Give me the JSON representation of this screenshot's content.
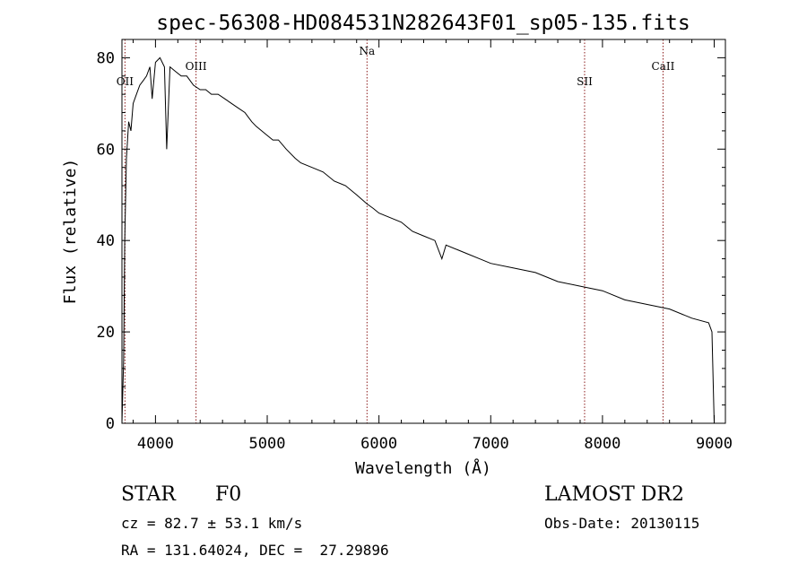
{
  "chart_data": {
    "type": "line",
    "title": "spec-56308-HD084531N282643F01_sp05-135.fits",
    "xlabel": "Wavelength (Å)",
    "ylabel": "Flux (relative)",
    "xlim": [
      3700,
      9100
    ],
    "ylim": [
      0,
      84
    ],
    "xticks": [
      4000,
      5000,
      6000,
      7000,
      8000,
      9000
    ],
    "xtick_labels": [
      "4000",
      "5000",
      "6000",
      "7000",
      "8000",
      "9000"
    ],
    "yticks": [
      0,
      20,
      40,
      60,
      80
    ],
    "ytick_labels": [
      "0",
      "20",
      "40",
      "60",
      "80"
    ],
    "grid": false,
    "line_color": "#000000",
    "marker_color": "#8b1a1a",
    "line_markers": [
      {
        "label": "OII",
        "x": 3727
      },
      {
        "label": "OIII",
        "x": 4363
      },
      {
        "label": "Na",
        "x": 5893
      },
      {
        "label": "SII",
        "x": 7840
      },
      {
        "label": "CaII",
        "x": 8542
      }
    ],
    "series": [
      {
        "x": [
          3700,
          3715,
          3725,
          3740,
          3760,
          3780,
          3800,
          3830,
          3860,
          3890,
          3920,
          3950,
          3970,
          4000,
          4040,
          4080,
          4100,
          4130,
          4180,
          4230,
          4280,
          4340,
          4400,
          4450,
          4500,
          4560,
          4620,
          4680,
          4740,
          4800,
          4861,
          4900,
          4950,
          5000,
          5050,
          5100,
          5170,
          5250,
          5300,
          5400,
          5500,
          5600,
          5700,
          5800,
          5893,
          5950,
          6000,
          6100,
          6200,
          6300,
          6400,
          6500,
          6563,
          6600,
          6700,
          6800,
          6900,
          7000,
          7200,
          7400,
          7600,
          7800,
          8000,
          8200,
          8400,
          8600,
          8800,
          8950,
          8980,
          9000
        ],
        "y": [
          0,
          14,
          40,
          58,
          66,
          64,
          70,
          72,
          74,
          75,
          76,
          78,
          71,
          79,
          80,
          78,
          60,
          78,
          77,
          76,
          76,
          74,
          73,
          73,
          72,
          72,
          71,
          70,
          69,
          68,
          66,
          65,
          64,
          63,
          62,
          62,
          60,
          58,
          57,
          56,
          55,
          53,
          52,
          50,
          48,
          47,
          46,
          45,
          44,
          42,
          41,
          40,
          36,
          39,
          38,
          37,
          36,
          35,
          34,
          33,
          31,
          30,
          29,
          27,
          26,
          25,
          23,
          22,
          20,
          0
        ]
      }
    ]
  },
  "info": {
    "object_type": "STAR",
    "subclass": "F0",
    "survey": "LAMOST DR2",
    "redshift_line": "cz = 82.7 ± 53.1 km/s",
    "obs_date": "Obs-Date: 20130115",
    "coords": "RA = 131.64024, DEC =  27.29896"
  }
}
